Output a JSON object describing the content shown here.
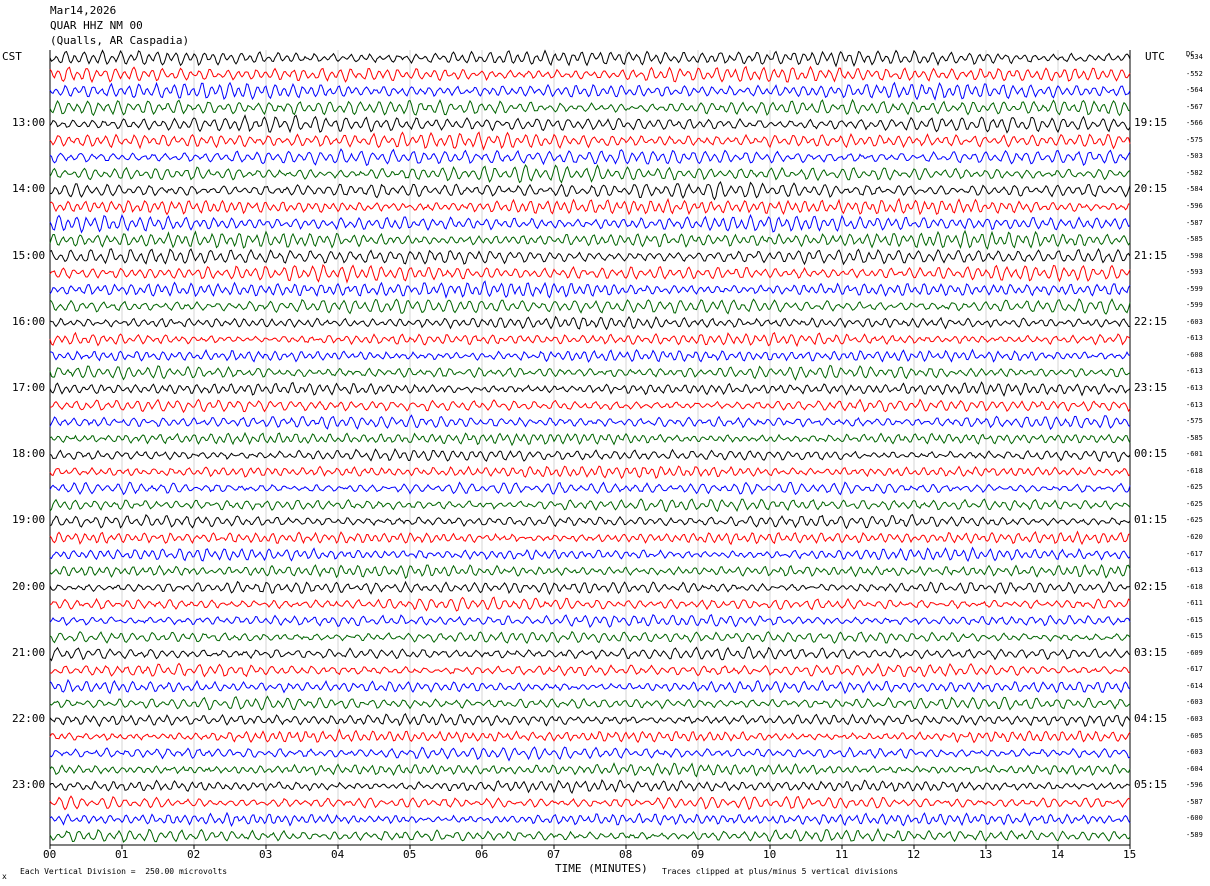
{
  "header": {
    "date": "Mar14,2026",
    "station": "QUAR HHZ NM 00",
    "location": "(Qualls, AR Caspadia)"
  },
  "left_zone": "CST",
  "right_zone": "UTC",
  "dc_header": "DC",
  "chart_data": {
    "type": "line",
    "title": "",
    "xlabel": "TIME (MINUTES)",
    "x_ticks": [
      "00",
      "01",
      "02",
      "03",
      "04",
      "05",
      "06",
      "07",
      "08",
      "09",
      "10",
      "11",
      "12",
      "13",
      "14",
      "15"
    ],
    "xlim": [
      0,
      15
    ],
    "trace_colors": [
      "#000000",
      "#ff0000",
      "#0000ff",
      "#006400"
    ],
    "left_hour_labels": [
      "13:00",
      "14:00",
      "15:00",
      "16:00",
      "17:00",
      "18:00",
      "19:00",
      "20:00",
      "21:00",
      "22:00",
      "23:00"
    ],
    "right_hour_labels": [
      "19:15",
      "20:15",
      "21:15",
      "22:15",
      "23:15",
      "00:15",
      "01:15",
      "02:15",
      "03:15",
      "04:15",
      "05:15"
    ],
    "dc_offsets": [
      "-534",
      "-552",
      "-564",
      "-567",
      "-566",
      "-575",
      "-503",
      "-582",
      "-584",
      "-596",
      "-587",
      "-585",
      "-598",
      "-593",
      "-599",
      "-599",
      "-603",
      "-613",
      "-608",
      "-613",
      "-613",
      "-613",
      "-575",
      "-585",
      "-601",
      "-618",
      "-625",
      "-625",
      "-625",
      "-620",
      "-617",
      "-613",
      "-618",
      "-611",
      "-615",
      "-615",
      "-609",
      "-617",
      "-614",
      "-603",
      "-603",
      "-605",
      "-603",
      "-604",
      "-596",
      "-587",
      "-600",
      "-589"
    ],
    "vertical_division": "Each Vertical Division =  250.00 microvolts",
    "clip_note": "Traces clipped at plus/minus 5 vertical divisions"
  },
  "footer": {
    "corner_mark": "x"
  }
}
